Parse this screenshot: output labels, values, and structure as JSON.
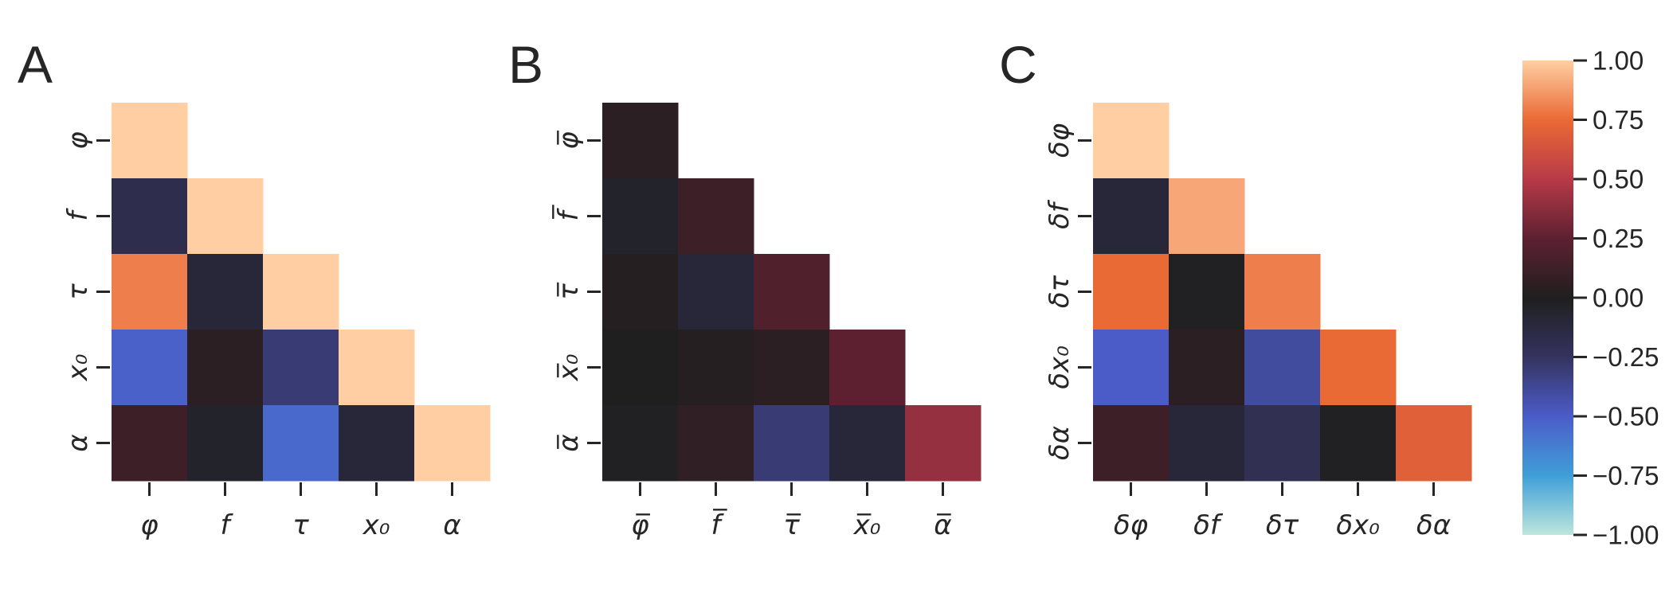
{
  "chart_data": [
    {
      "type": "heatmap",
      "panel_label": "A",
      "x_labels": [
        "φ",
        "f",
        "τ",
        "x₀",
        "α"
      ],
      "y_labels": [
        "φ",
        "f",
        "τ",
        "x₀",
        "α"
      ],
      "values": [
        [
          1.0,
          null,
          null,
          null,
          null
        ],
        [
          -0.18,
          1.0,
          null,
          null,
          null
        ],
        [
          0.8,
          -0.1,
          1.0,
          null,
          null
        ],
        [
          -0.52,
          0.05,
          -0.3,
          1.0,
          null
        ],
        [
          0.12,
          -0.05,
          -0.55,
          -0.1,
          1.0
        ]
      ],
      "mask": "upper triangle"
    },
    {
      "type": "heatmap",
      "panel_label": "B",
      "x_labels": [
        "φ̅",
        "f̅",
        "τ̅",
        "x̅₀",
        "α̅"
      ],
      "y_labels": [
        "φ̅",
        "f̅",
        "τ̅",
        "x̅₀",
        "α̅"
      ],
      "values": [
        [
          0.05,
          null,
          null,
          null,
          null
        ],
        [
          -0.05,
          0.12,
          null,
          null,
          null
        ],
        [
          0.03,
          -0.1,
          0.2,
          null,
          null
        ],
        [
          0.0,
          0.03,
          0.05,
          0.25,
          null
        ],
        [
          -0.02,
          0.07,
          -0.3,
          -0.1,
          0.4
        ]
      ],
      "mask": "upper triangle"
    },
    {
      "type": "heatmap",
      "panel_label": "C",
      "x_labels": [
        "δφ",
        "δf",
        "δτ",
        "δx₀",
        "δα"
      ],
      "y_labels": [
        "δφ",
        "δf",
        "δτ",
        "δx₀",
        "δα"
      ],
      "values": [
        [
          1.0,
          null,
          null,
          null,
          null
        ],
        [
          -0.1,
          0.9,
          null,
          null,
          null
        ],
        [
          0.75,
          -0.02,
          0.8,
          null,
          null
        ],
        [
          -0.5,
          0.05,
          -0.4,
          0.75,
          null
        ],
        [
          0.12,
          -0.1,
          -0.2,
          -0.02,
          0.7
        ]
      ],
      "mask": "upper triangle"
    }
  ],
  "colorbar": {
    "ticks": [
      "1.00",
      "0.75",
      "0.50",
      "0.25",
      "0.00",
      "−0.25",
      "−0.50",
      "−0.75",
      "−1.00"
    ],
    "vmin": -1.0,
    "vmax": 1.0,
    "colormap": "icefire"
  }
}
